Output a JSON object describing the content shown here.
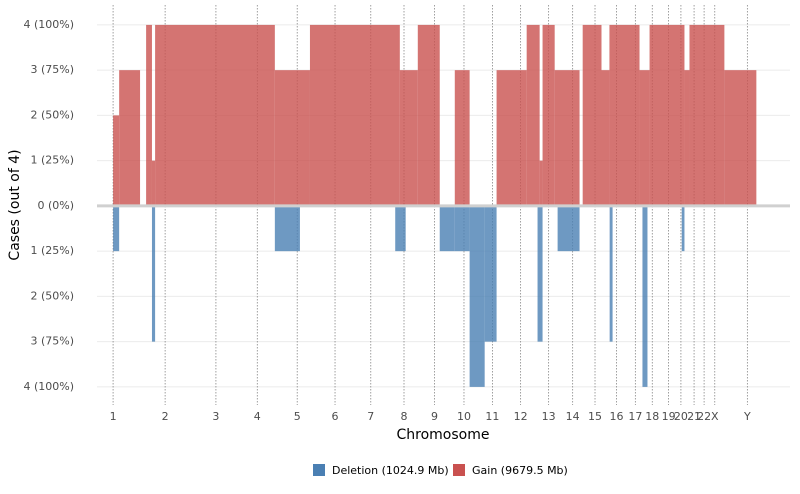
{
  "chart_data": {
    "type": "segments",
    "y_label": "Cases (out of 4)",
    "x_label": "Chromosome",
    "xlim": [
      -77,
      3239
    ],
    "ylim": [
      -4.4,
      4.44
    ],
    "grid": true,
    "legend": "bottom",
    "xticks": [
      {
        "value": 0,
        "label": "1"
      },
      {
        "value": 249,
        "label": "2"
      },
      {
        "value": 492,
        "label": "3"
      },
      {
        "value": 690,
        "label": "4"
      },
      {
        "value": 881,
        "label": "5"
      },
      {
        "value": 1062,
        "label": "6"
      },
      {
        "value": 1233,
        "label": "7"
      },
      {
        "value": 1392,
        "label": "8"
      },
      {
        "value": 1538,
        "label": "9"
      },
      {
        "value": 1679,
        "label": "10"
      },
      {
        "value": 1815,
        "label": "11"
      },
      {
        "value": 1950,
        "label": "12"
      },
      {
        "value": 2084,
        "label": "13"
      },
      {
        "value": 2199,
        "label": "14"
      },
      {
        "value": 2306,
        "label": "15"
      },
      {
        "value": 2409,
        "label": "16"
      },
      {
        "value": 2499,
        "label": "17"
      },
      {
        "value": 2580,
        "label": "18"
      },
      {
        "value": 2658,
        "label": "19"
      },
      {
        "value": 2717,
        "label": "20"
      },
      {
        "value": 2780,
        "label": "21"
      },
      {
        "value": 2828,
        "label": "22"
      },
      {
        "value": 2879,
        "label": "X"
      },
      {
        "value": 3035,
        "label": "Y"
      }
    ],
    "yticks": [
      {
        "value": 4,
        "label": "4 (100%)"
      },
      {
        "value": 3,
        "label": "3 (75%)"
      },
      {
        "value": 2,
        "label": "2 (50%)"
      },
      {
        "value": 1,
        "label": "1 (25%)"
      },
      {
        "value": 0,
        "label": "0 (0%)"
      },
      {
        "value": -1,
        "label": "1 (25%)"
      },
      {
        "value": -2,
        "label": "2 (50%)"
      },
      {
        "value": -3,
        "label": "3 (75%)"
      },
      {
        "value": -4,
        "label": "4 (100%)"
      }
    ],
    "series": [
      {
        "name": "Deletion (1024.9 Mb)",
        "color": "#4a7fb3",
        "segments": [
          [
            0,
            29,
            -1
          ],
          [
            186,
            201,
            -3
          ],
          [
            774,
            894,
            -1
          ],
          [
            1350,
            1400,
            -1
          ],
          [
            1563,
            1635,
            -1
          ],
          [
            1635,
            1706,
            -1
          ],
          [
            1706,
            1778,
            -4
          ],
          [
            1778,
            1835,
            -3
          ],
          [
            2031,
            2055,
            -3
          ],
          [
            2127,
            2232,
            -1
          ],
          [
            2376,
            2390,
            -3
          ],
          [
            2533,
            2557,
            -4
          ],
          [
            2721,
            2734,
            -1
          ]
        ]
      },
      {
        "name": "Gain (9679.5 Mb)",
        "color": "#c9514f",
        "segments": [
          [
            0,
            29,
            2
          ],
          [
            29,
            129,
            3
          ],
          [
            158,
            186,
            4
          ],
          [
            186,
            201,
            1
          ],
          [
            201,
            774,
            4
          ],
          [
            774,
            942,
            3
          ],
          [
            942,
            1372,
            4
          ],
          [
            1372,
            1458,
            3
          ],
          [
            1458,
            1563,
            4
          ],
          [
            1635,
            1706,
            3
          ],
          [
            1835,
            1979,
            3
          ],
          [
            1979,
            2041,
            4
          ],
          [
            2041,
            2055,
            1
          ],
          [
            2055,
            2113,
            4
          ],
          [
            2113,
            2232,
            3
          ],
          [
            2247,
            2337,
            4
          ],
          [
            2337,
            2375,
            3
          ],
          [
            2375,
            2519,
            4
          ],
          [
            2519,
            2567,
            3
          ],
          [
            2567,
            2734,
            4
          ],
          [
            2734,
            2758,
            3
          ],
          [
            2758,
            2925,
            4
          ],
          [
            2925,
            3078,
            3
          ]
        ]
      }
    ]
  }
}
